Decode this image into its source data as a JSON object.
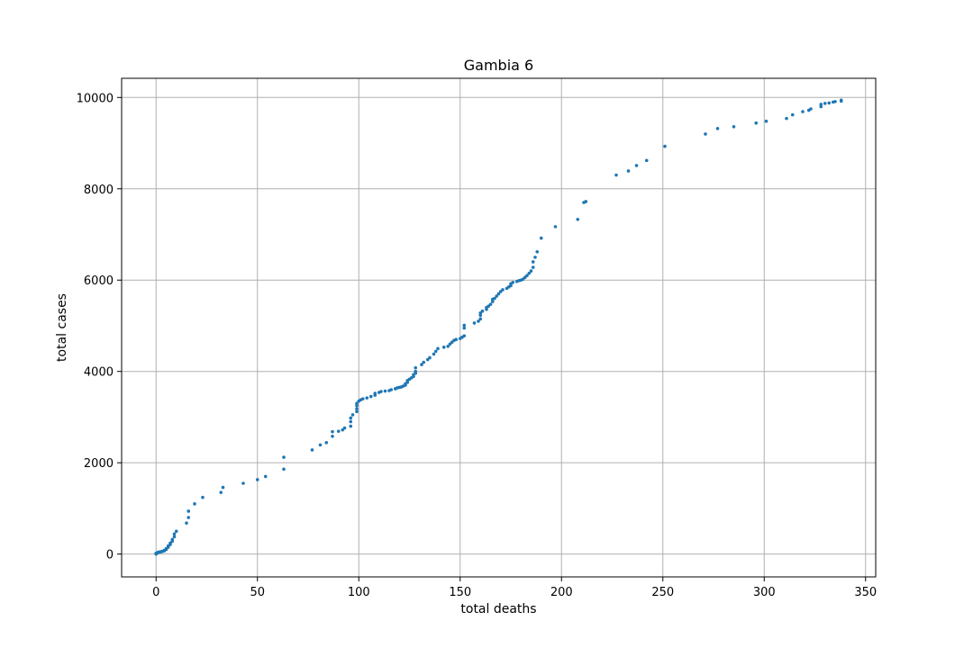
{
  "chart_data": {
    "type": "scatter",
    "title": "Gambia 6",
    "xlabel": "total deaths",
    "ylabel": "total cases",
    "xlim": [
      -17,
      355
    ],
    "ylim": [
      -500,
      10420
    ],
    "xticks": [
      0,
      50,
      100,
      150,
      200,
      250,
      300,
      350
    ],
    "yticks": [
      0,
      2000,
      4000,
      6000,
      8000,
      10000
    ],
    "grid": true,
    "color": "#1f77b4",
    "series": [
      {
        "points": [
          [
            0,
            0
          ],
          [
            0,
            10
          ],
          [
            0,
            20
          ],
          [
            1,
            30
          ],
          [
            1,
            40
          ],
          [
            2,
            45
          ],
          [
            2,
            50
          ],
          [
            3,
            55
          ],
          [
            3,
            60
          ],
          [
            4,
            70
          ],
          [
            4,
            80
          ],
          [
            5,
            100
          ],
          [
            5,
            120
          ],
          [
            6,
            150
          ],
          [
            6,
            180
          ],
          [
            7,
            210
          ],
          [
            7,
            240
          ],
          [
            8,
            280
          ],
          [
            8,
            320
          ],
          [
            9,
            380
          ],
          [
            9,
            440
          ],
          [
            10,
            500
          ],
          [
            15,
            680
          ],
          [
            16,
            800
          ],
          [
            16,
            940
          ],
          [
            19,
            1100
          ],
          [
            23,
            1240
          ],
          [
            32,
            1350
          ],
          [
            33,
            1460
          ],
          [
            43,
            1550
          ],
          [
            50,
            1630
          ],
          [
            54,
            1700
          ],
          [
            63,
            1860
          ],
          [
            63,
            2120
          ],
          [
            77,
            2280
          ],
          [
            81,
            2390
          ],
          [
            84,
            2440
          ],
          [
            87,
            2580
          ],
          [
            87,
            2680
          ],
          [
            90,
            2690
          ],
          [
            92,
            2720
          ],
          [
            93,
            2760
          ],
          [
            96,
            2800
          ],
          [
            96,
            2900
          ],
          [
            96,
            2980
          ],
          [
            97,
            3050
          ],
          [
            99,
            3120
          ],
          [
            99,
            3180
          ],
          [
            99,
            3250
          ],
          [
            99,
            3300
          ],
          [
            100,
            3350
          ],
          [
            101,
            3380
          ],
          [
            102,
            3400
          ],
          [
            104,
            3420
          ],
          [
            106,
            3450
          ],
          [
            108,
            3480
          ],
          [
            108,
            3520
          ],
          [
            110,
            3540
          ],
          [
            111,
            3560
          ],
          [
            113,
            3570
          ],
          [
            115,
            3580
          ],
          [
            116,
            3600
          ],
          [
            118,
            3620
          ],
          [
            119,
            3640
          ],
          [
            120,
            3650
          ],
          [
            121,
            3660
          ],
          [
            122,
            3680
          ],
          [
            123,
            3700
          ],
          [
            123,
            3730
          ],
          [
            124,
            3760
          ],
          [
            124,
            3800
          ],
          [
            125,
            3830
          ],
          [
            126,
            3860
          ],
          [
            127,
            3890
          ],
          [
            127,
            3930
          ],
          [
            128,
            3960
          ],
          [
            128,
            4000
          ],
          [
            128,
            4080
          ],
          [
            131,
            4150
          ],
          [
            132,
            4200
          ],
          [
            134,
            4260
          ],
          [
            135,
            4300
          ],
          [
            137,
            4380
          ],
          [
            138,
            4440
          ],
          [
            139,
            4500
          ],
          [
            142,
            4530
          ],
          [
            144,
            4550
          ],
          [
            145,
            4600
          ],
          [
            146,
            4640
          ],
          [
            147,
            4680
          ],
          [
            148,
            4700
          ],
          [
            150,
            4720
          ],
          [
            151,
            4750
          ],
          [
            152,
            4780
          ],
          [
            152,
            4950
          ],
          [
            152,
            5010
          ],
          [
            157,
            5060
          ],
          [
            159,
            5100
          ],
          [
            160,
            5150
          ],
          [
            160,
            5230
          ],
          [
            160,
            5280
          ],
          [
            161,
            5320
          ],
          [
            163,
            5360
          ],
          [
            163,
            5400
          ],
          [
            164,
            5430
          ],
          [
            165,
            5470
          ],
          [
            166,
            5530
          ],
          [
            166,
            5580
          ],
          [
            167,
            5600
          ],
          [
            168,
            5650
          ],
          [
            169,
            5700
          ],
          [
            170,
            5750
          ],
          [
            171,
            5790
          ],
          [
            173,
            5820
          ],
          [
            174,
            5850
          ],
          [
            175,
            5880
          ],
          [
            175,
            5920
          ],
          [
            176,
            5950
          ],
          [
            178,
            5970
          ],
          [
            179,
            5990
          ],
          [
            180,
            6000
          ],
          [
            181,
            6020
          ],
          [
            182,
            6060
          ],
          [
            183,
            6100
          ],
          [
            184,
            6150
          ],
          [
            185,
            6200
          ],
          [
            186,
            6280
          ],
          [
            186,
            6400
          ],
          [
            187,
            6500
          ],
          [
            188,
            6620
          ],
          [
            190,
            6920
          ],
          [
            197,
            7170
          ],
          [
            208,
            7330
          ],
          [
            211,
            7700
          ],
          [
            212,
            7720
          ],
          [
            227,
            8300
          ],
          [
            233,
            8390
          ],
          [
            237,
            8510
          ],
          [
            242,
            8620
          ],
          [
            251,
            8930
          ],
          [
            271,
            9200
          ],
          [
            277,
            9320
          ],
          [
            285,
            9360
          ],
          [
            296,
            9440
          ],
          [
            301,
            9480
          ],
          [
            311,
            9540
          ],
          [
            314,
            9620
          ],
          [
            319,
            9690
          ],
          [
            322,
            9720
          ],
          [
            323,
            9750
          ],
          [
            328,
            9800
          ],
          [
            328,
            9850
          ],
          [
            330,
            9870
          ],
          [
            332,
            9880
          ],
          [
            334,
            9900
          ],
          [
            335,
            9910
          ],
          [
            338,
            9920
          ],
          [
            338,
            9940
          ]
        ]
      }
    ]
  }
}
